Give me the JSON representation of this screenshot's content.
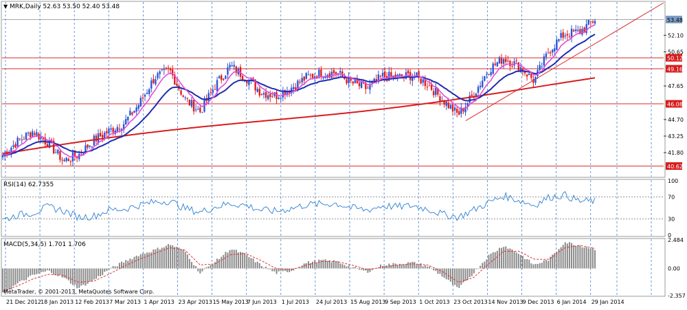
{
  "header": {
    "symbol_line": "MRK,Daily  52.63 53.50 52.40 53.48"
  },
  "footer": {
    "copyright": "MetaTrader, © 2001-2013, MetaQuotes Software Corp."
  },
  "colors": {
    "bull": "#2b55d6",
    "bear": "#e01d1d",
    "ma_fast": "#e24bd8",
    "ma_mid": "#1c2db0",
    "ma_slow": "#d81c1c",
    "level_line": "#d82828",
    "level_tag": "#d81c1c",
    "price_tag": "#7a9cc6",
    "rsi_line": "#2a7fd4",
    "macd_hist": "#8a8a8a",
    "macd_signal": "#e03030",
    "grid": "#3b7fd9"
  },
  "chart_data": [
    {
      "type": "candlestick",
      "panel": "price",
      "title": "MRK,Daily",
      "ohlc_header": {
        "open": 52.63,
        "high": 53.5,
        "low": 52.4,
        "close": 53.48
      },
      "ylim": [
        39.75,
        54.95
      ],
      "y_ticks": [
        53.48,
        52.1,
        50.65,
        50.12,
        49.16,
        47.65,
        46.08,
        44.7,
        43.25,
        41.8,
        40.62
      ],
      "x_tick_labels": [
        "21 Dec 2012",
        "18 Jan 2013",
        "12 Feb 2013",
        "7 Mar 2013",
        "1 Apr 2013",
        "23 Apr 2013",
        "15 May 2013",
        "7 Jun 2013",
        "1 Jul 2013",
        "24 Jul 2013",
        "15 Aug 2013",
        "9 Sep 2013",
        "1 Oct 2013",
        "23 Oct 2013",
        "14 Nov 2013",
        "9 Dec 2013",
        "6 Jan 2014",
        "29 Jan 2014"
      ],
      "close_anchors": [
        41.6,
        42.8,
        43.7,
        42.6,
        41.1,
        41.6,
        42.9,
        43.7,
        44.4,
        46.1,
        48.4,
        49.0,
        46.5,
        45.4,
        47.7,
        49.4,
        48.4,
        47.1,
        46.8,
        47.5,
        48.4,
        48.8,
        48.8,
        47.9,
        47.4,
        48.5,
        48.4,
        48.6,
        47.8,
        46.4,
        45.1,
        46.9,
        49.1,
        50.1,
        49.4,
        48.1,
        50.8,
        52.2,
        52.4,
        53.5
      ],
      "horizontal_levels": [
        {
          "price": 50.12,
          "label": "50.12"
        },
        {
          "price": 49.16,
          "label": "49.16"
        },
        {
          "price": 46.08,
          "label": "46.08"
        },
        {
          "price": 40.62,
          "label": "40.62"
        }
      ],
      "current_price": 53.48,
      "trendline": {
        "from": {
          "date": "23 Oct 2013",
          "price": 44.6
        },
        "to_extends_up_right": true
      },
      "moving_averages": [
        {
          "color": "ma_fast",
          "role": "fast"
        },
        {
          "color": "ma_mid",
          "role": "medium"
        },
        {
          "color": "ma_slow",
          "role": "slow"
        }
      ]
    },
    {
      "type": "line",
      "panel": "rsi",
      "title": "RSI(14) 62.7355",
      "ylim": [
        0,
        100
      ],
      "y_ticks": [
        100,
        70,
        30,
        0
      ],
      "dashed_levels": [
        70,
        30
      ],
      "values": [
        28,
        37,
        41,
        52,
        45,
        33,
        35,
        46,
        48,
        55,
        61,
        63,
        49,
        42,
        52,
        58,
        55,
        46,
        44,
        49,
        56,
        57,
        58,
        50,
        46,
        54,
        52,
        54,
        48,
        38,
        33,
        46,
        60,
        72,
        64,
        55,
        70,
        74,
        62,
        63
      ]
    },
    {
      "type": "histogram+line",
      "panel": "macd",
      "title": "MACD(5,34,5) 1.701 1.706",
      "ylim": [
        -2.357,
        2.484
      ],
      "y_ticks": [
        2.484,
        0.0,
        -2.357
      ],
      "histogram": [
        -2.2,
        -1.3,
        -0.6,
        -0.2,
        -0.8,
        -1.7,
        -1.0,
        -0.1,
        0.6,
        1.2,
        1.6,
        2.1,
        1.5,
        -0.4,
        0.6,
        1.7,
        1.2,
        0.3,
        -0.4,
        -0.2,
        0.5,
        0.7,
        0.6,
        0.1,
        -0.3,
        0.3,
        0.4,
        0.5,
        0.2,
        -0.7,
        -1.8,
        -0.4,
        1.1,
        2.0,
        1.3,
        0.3,
        0.8,
        2.3,
        2.0,
        1.7
      ],
      "signal": [
        -2.0,
        -1.5,
        -0.9,
        -0.5,
        -0.6,
        -1.2,
        -1.1,
        -0.5,
        0.2,
        0.8,
        1.3,
        1.8,
        1.6,
        0.3,
        0.4,
        1.2,
        1.3,
        0.7,
        0.0,
        -0.1,
        0.3,
        0.6,
        0.6,
        0.3,
        -0.1,
        0.1,
        0.3,
        0.4,
        0.3,
        -0.3,
        -1.2,
        -0.8,
        0.4,
        1.5,
        1.5,
        0.8,
        0.8,
        1.8,
        2.0,
        1.75
      ]
    }
  ]
}
